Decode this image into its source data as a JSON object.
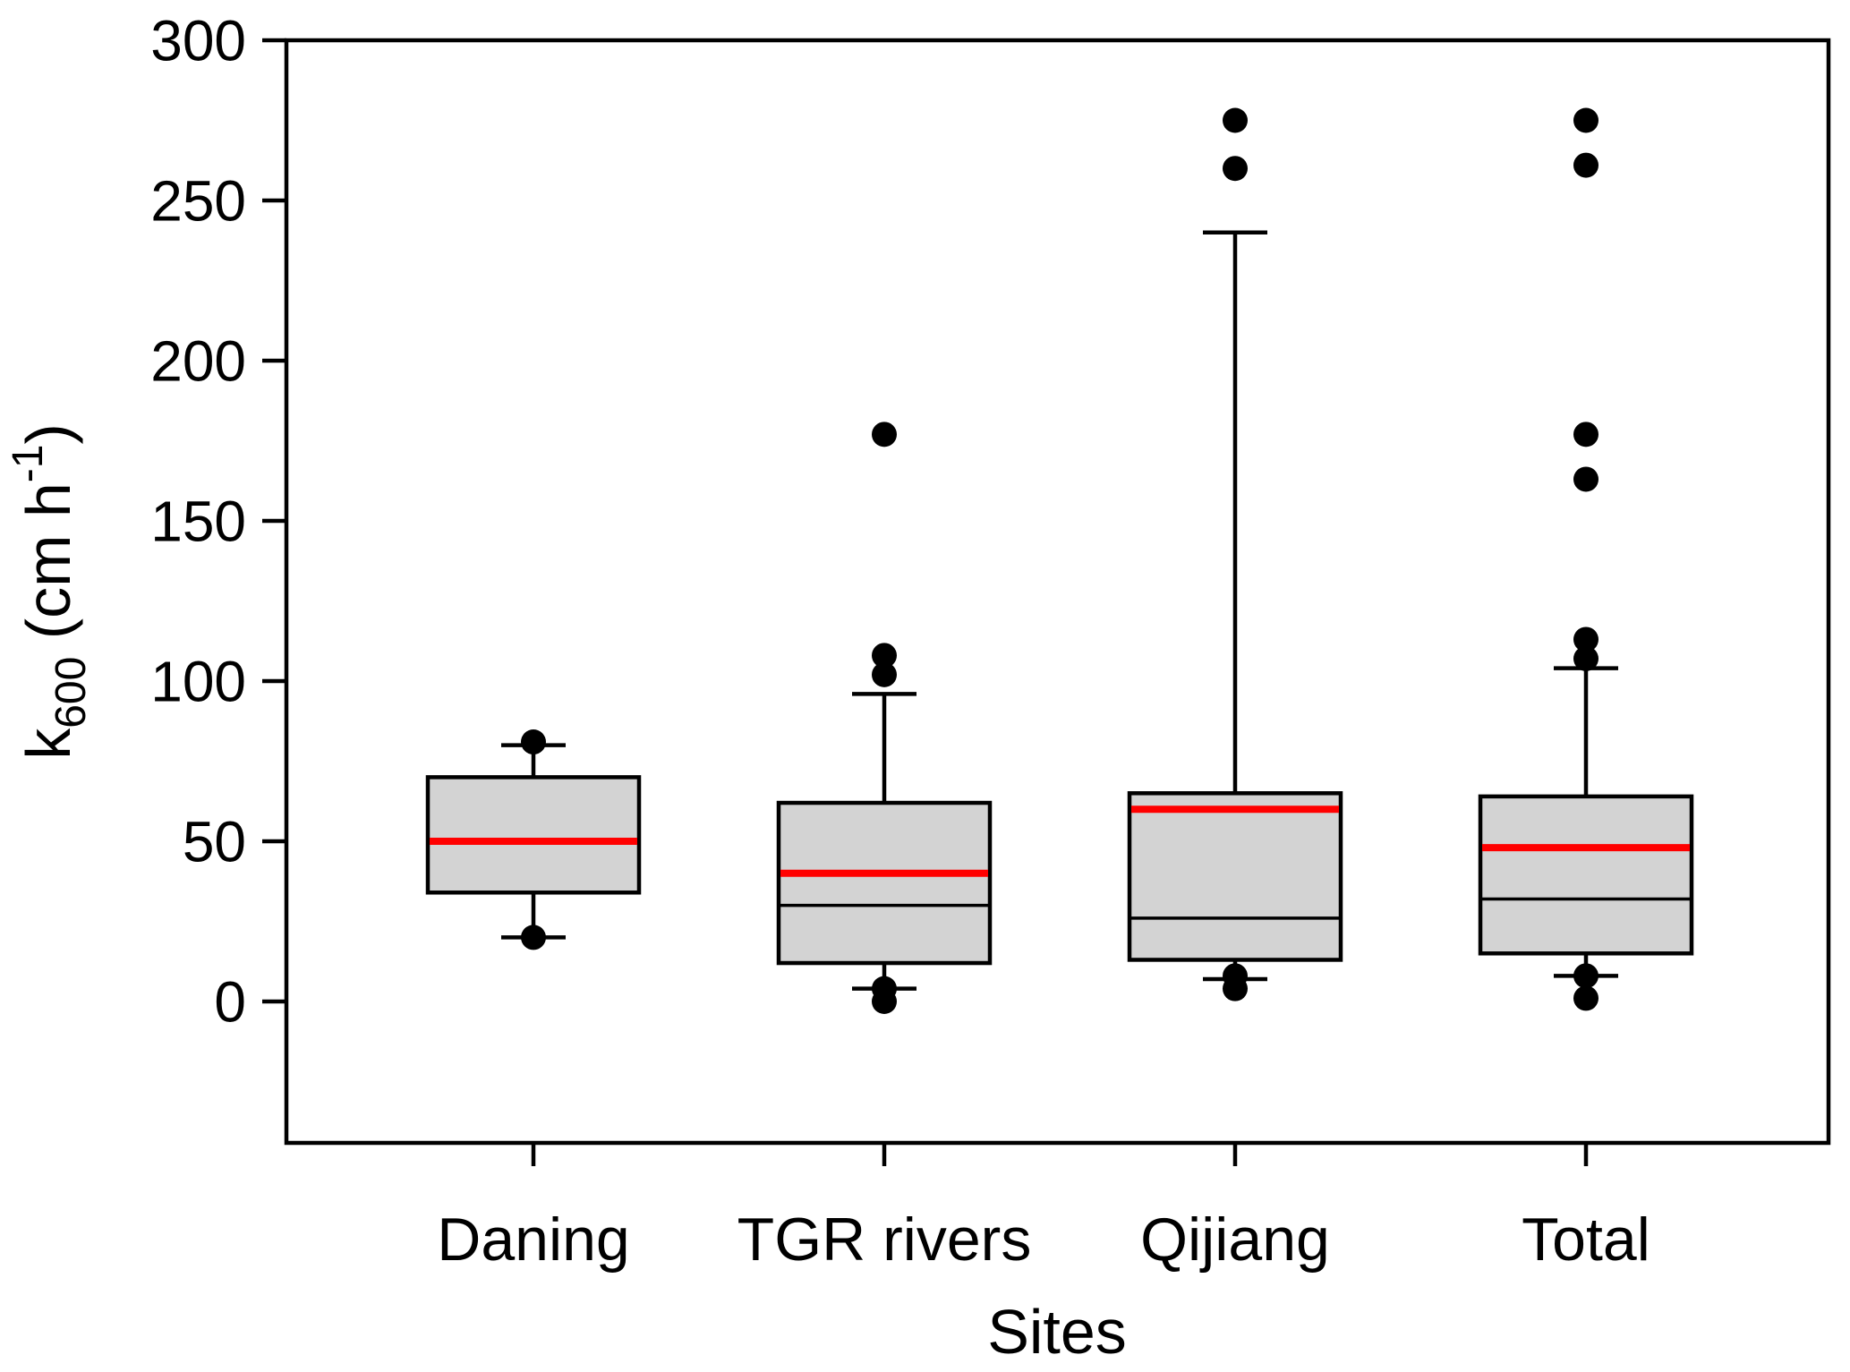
{
  "figure": {
    "background": "#ffffff"
  },
  "chart_data": {
    "type": "box",
    "title": "",
    "xlabel": "Sites",
    "ylabel": "k600 (cm h-1)",
    "ylabel_rich": [
      {
        "t": "k",
        "style": "base"
      },
      {
        "t": "600",
        "style": "sub"
      },
      {
        "t": " (cm h",
        "style": "base"
      },
      {
        "t": "-1",
        "style": "sup"
      },
      {
        "t": ")",
        "style": "base"
      }
    ],
    "ylim": [
      -45,
      300
    ],
    "yticks": [
      0,
      50,
      100,
      150,
      200,
      250,
      300
    ],
    "grid": false,
    "legend": "none",
    "categories": [
      "Daning",
      "TGR rivers",
      "Qijiang",
      "Total"
    ],
    "series": [
      {
        "name": "Daning",
        "q1": 34,
        "median": 50,
        "mean": 50,
        "q3": 70,
        "whisker_low": 20,
        "whisker_high": 80,
        "outliers_low": [
          20
        ],
        "outliers_high": [
          81
        ]
      },
      {
        "name": "TGR rivers",
        "q1": 12,
        "median": 30,
        "mean": 40,
        "q3": 62,
        "whisker_low": 4,
        "whisker_high": 96,
        "outliers_low": [
          0,
          4
        ],
        "outliers_high": [
          102,
          108,
          177
        ]
      },
      {
        "name": "Qijiang",
        "q1": 13,
        "median": 26,
        "mean": 60,
        "q3": 65,
        "whisker_low": 7,
        "whisker_high": 240,
        "outliers_low": [
          4,
          8
        ],
        "outliers_high": [
          260,
          275
        ]
      },
      {
        "name": "Total",
        "q1": 15,
        "median": 32,
        "mean": 48,
        "q3": 64,
        "whisker_low": 8,
        "whisker_high": 104,
        "outliers_low": [
          1,
          8
        ],
        "outliers_high": [
          107,
          113,
          163,
          177,
          261,
          275
        ]
      }
    ],
    "colors": {
      "box_fill": "#d3d3d3",
      "box_stroke": "#000000",
      "median": "#000000",
      "mean": "#ff0000",
      "dots": "#000000",
      "axis": "#000000",
      "text": "#000000"
    }
  }
}
